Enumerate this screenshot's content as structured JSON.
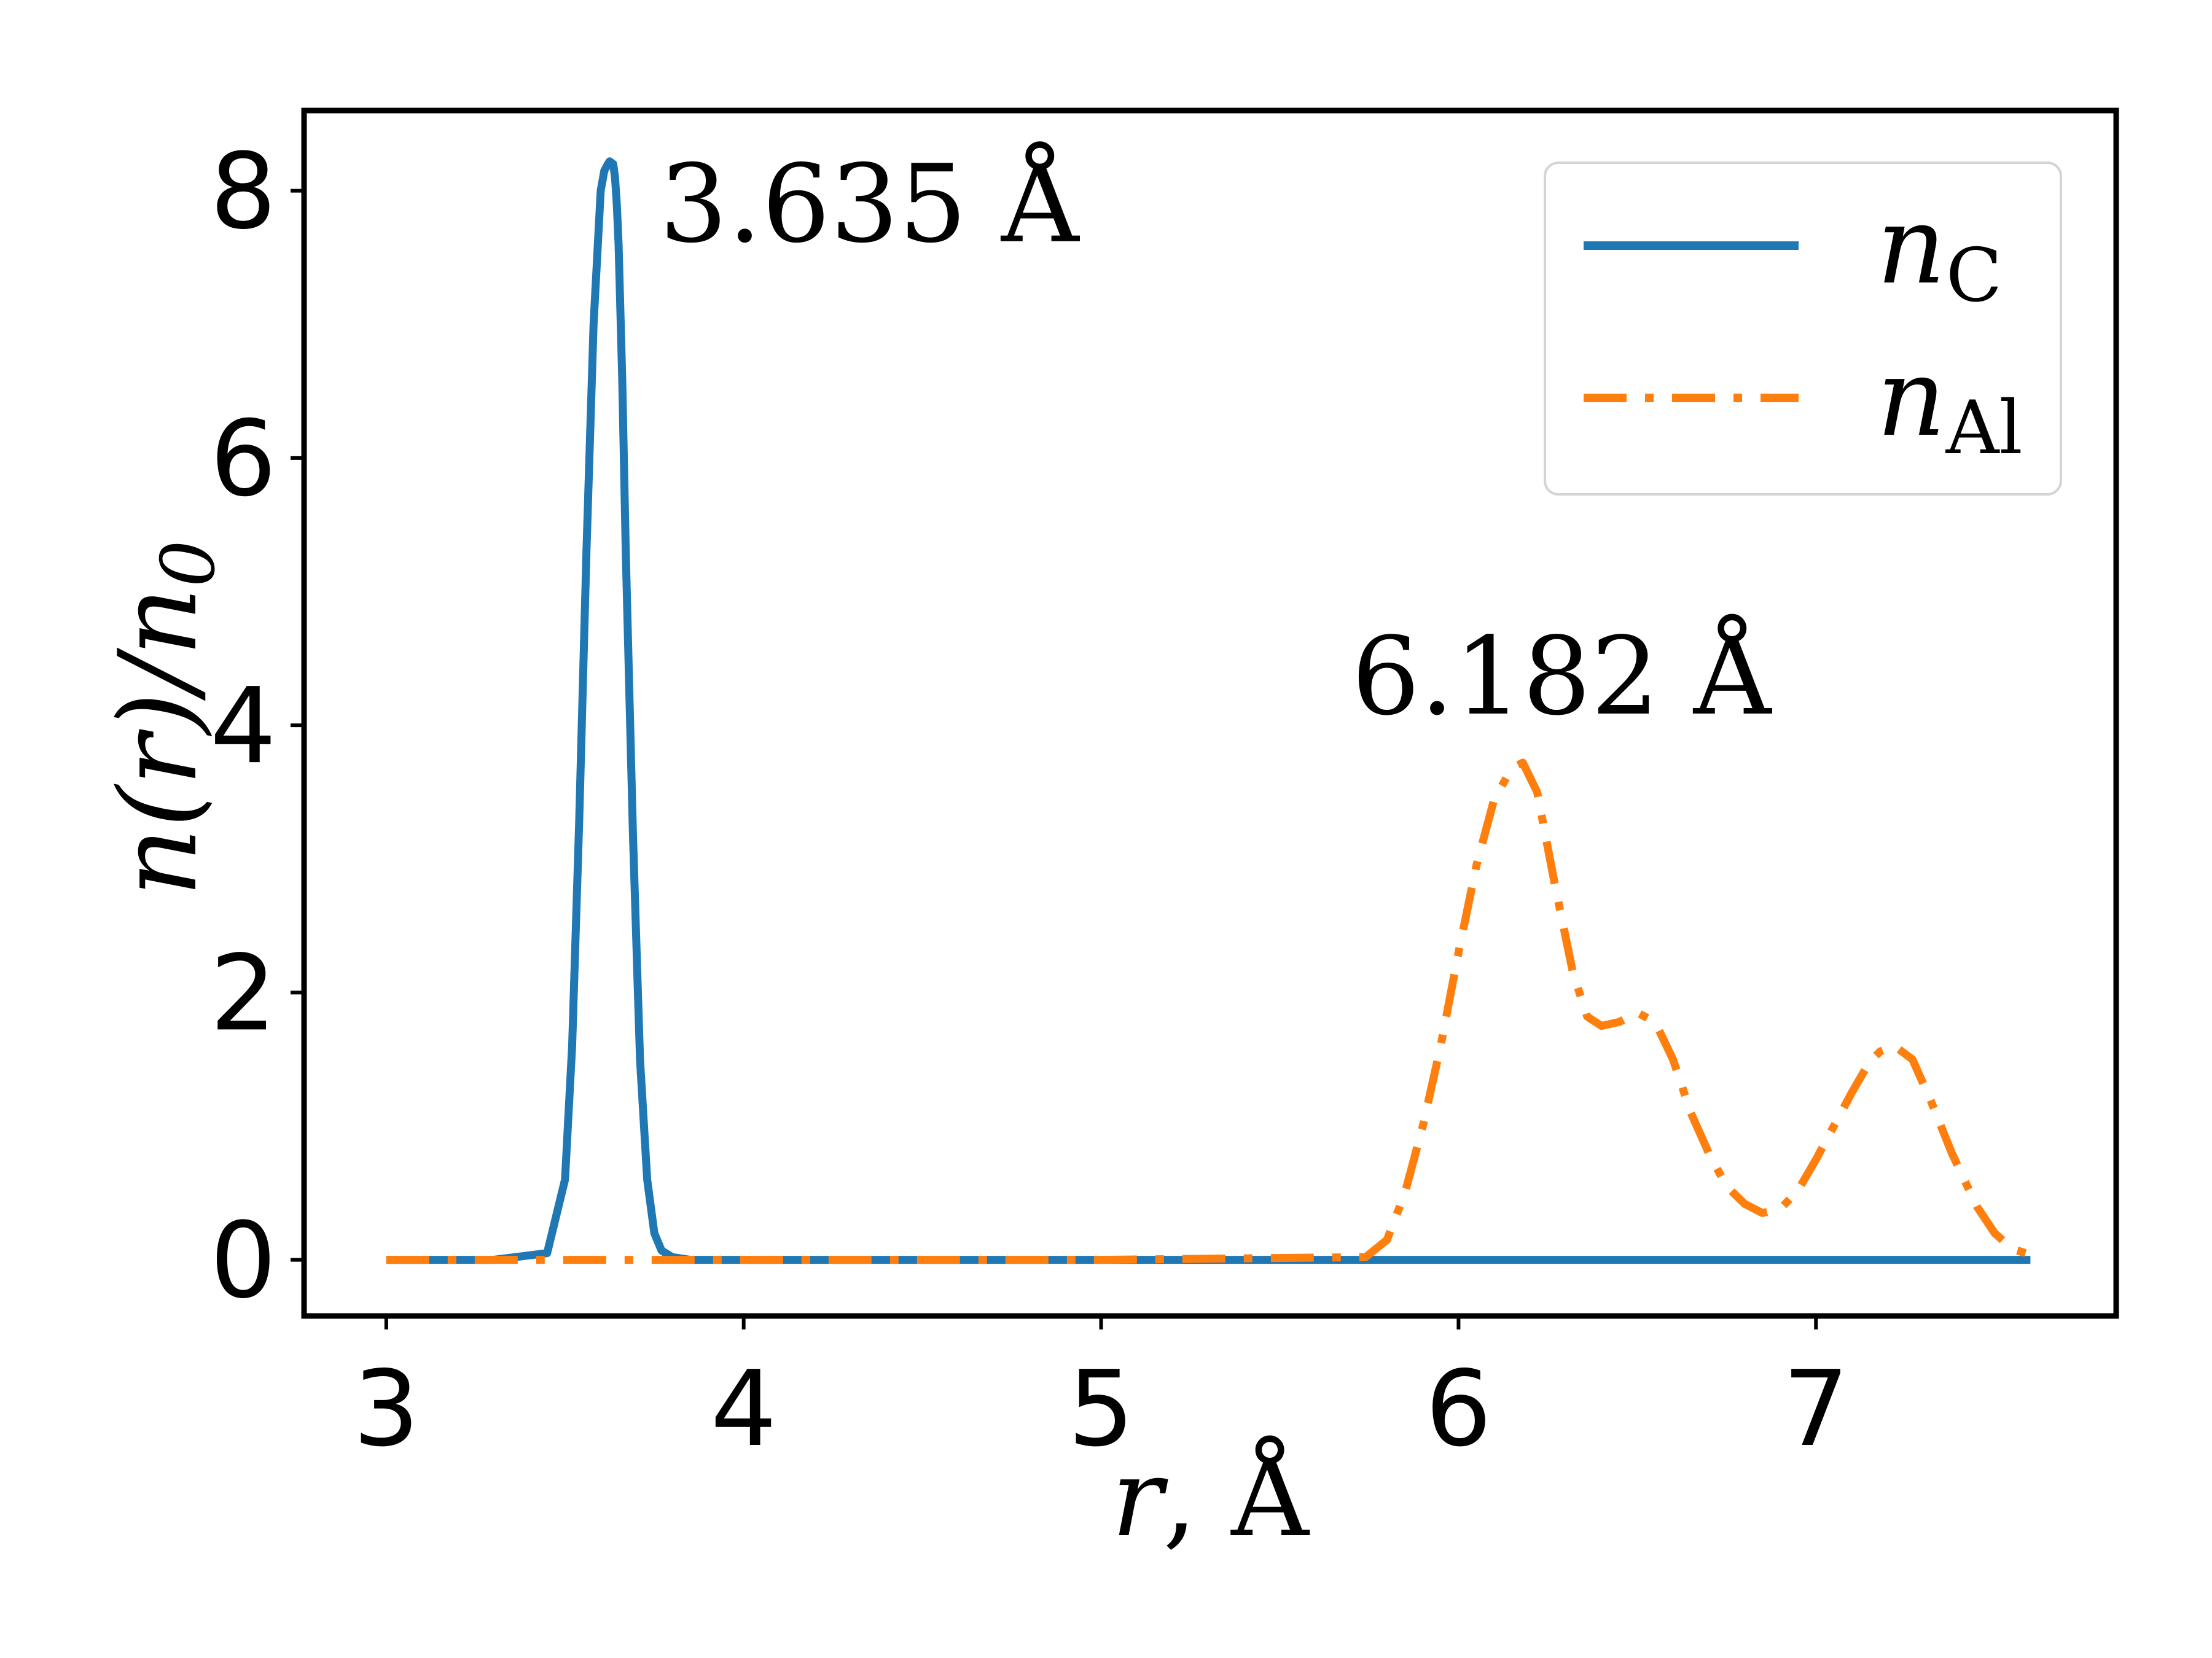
{
  "chart_data": {
    "type": "line",
    "title": "",
    "xlabel": "r, Å",
    "ylabel": "n(r)/n0",
    "xlim": [
      2.77,
      7.84
    ],
    "ylim": [
      -0.42,
      8.6
    ],
    "xticks": [
      3,
      4,
      5,
      6,
      7
    ],
    "yticks": [
      0,
      2,
      4,
      6,
      8
    ],
    "grid": false,
    "legend_position": "top-right",
    "series": [
      {
        "name": "n_C",
        "color": "#1f77b4",
        "style": "solid",
        "x": [
          3.0,
          3.3,
          3.45,
          3.5,
          3.52,
          3.54,
          3.56,
          3.58,
          3.6,
          3.61,
          3.62,
          3.625,
          3.63,
          3.635,
          3.64,
          3.645,
          3.65,
          3.66,
          3.67,
          3.69,
          3.71,
          3.73,
          3.75,
          3.77,
          3.8,
          3.85,
          4.0,
          5.0,
          6.0,
          7.0,
          7.6
        ],
        "y": [
          0.0,
          0.0,
          0.05,
          0.6,
          1.6,
          3.3,
          5.3,
          7.0,
          8.0,
          8.15,
          8.2,
          8.22,
          8.21,
          8.2,
          8.1,
          7.9,
          7.6,
          6.6,
          5.3,
          3.2,
          1.5,
          0.6,
          0.2,
          0.07,
          0.02,
          0.0,
          0.0,
          0.0,
          0.0,
          0.0,
          0.0
        ]
      },
      {
        "name": "n_Al",
        "color": "#ff7f0e",
        "style": "dashdot",
        "x": [
          3.0,
          5.0,
          5.74,
          5.8,
          5.85,
          5.9,
          5.95,
          6.0,
          6.05,
          6.1,
          6.15,
          6.18,
          6.22,
          6.27,
          6.32,
          6.36,
          6.4,
          6.45,
          6.5,
          6.55,
          6.6,
          6.65,
          6.7,
          6.75,
          6.8,
          6.85,
          6.9,
          6.95,
          7.0,
          7.05,
          7.1,
          7.15,
          7.18,
          7.22,
          7.27,
          7.32,
          7.38,
          7.45,
          7.5,
          7.55,
          7.6
        ],
        "y": [
          0.0,
          0.0,
          0.02,
          0.15,
          0.5,
          1.0,
          1.6,
          2.3,
          2.95,
          3.45,
          3.68,
          3.72,
          3.5,
          2.8,
          2.15,
          1.82,
          1.75,
          1.78,
          1.85,
          1.78,
          1.5,
          1.1,
          0.8,
          0.55,
          0.42,
          0.35,
          0.38,
          0.52,
          0.75,
          1.0,
          1.25,
          1.48,
          1.56,
          1.6,
          1.5,
          1.2,
          0.8,
          0.4,
          0.2,
          0.08,
          0.04
        ]
      }
    ],
    "annotations": [
      {
        "text": "3.635 Å",
        "x": 3.635,
        "y": 8.22
      },
      {
        "text": "6.182 Å",
        "x": 6.182,
        "y": 3.72
      }
    ]
  },
  "legend": {
    "entries": [
      {
        "base": "n",
        "sub": "C"
      },
      {
        "base": "n",
        "sub": "Al"
      }
    ]
  },
  "ylabel_parts": {
    "main": "n(r)/n",
    "sub": "0"
  },
  "xlabel_parts": {
    "var": "r",
    "rest": ", Å"
  }
}
